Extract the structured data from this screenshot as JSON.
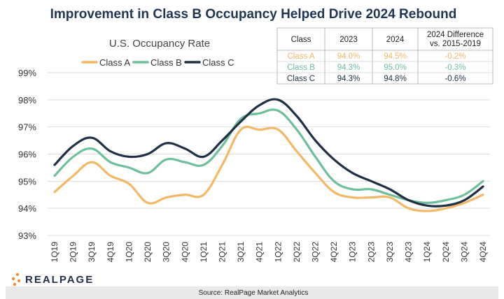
{
  "chart_data": {
    "type": "line",
    "title": "Improvement in Class B Occupancy Helped Drive 2024 Rebound",
    "subtitle": "U.S. Occupancy Rate",
    "categories": [
      "1Q19",
      "2Q19",
      "3Q19",
      "4Q19",
      "1Q20",
      "2Q20",
      "3Q20",
      "4Q20",
      "1Q21",
      "2Q21",
      "3Q21",
      "4Q21",
      "1Q22",
      "2Q22",
      "3Q22",
      "4Q22",
      "1Q23",
      "2Q23",
      "3Q23",
      "4Q23",
      "1Q24",
      "2Q24",
      "3Q24",
      "4Q24"
    ],
    "yticks": [
      "93%",
      "94%",
      "95%",
      "96%",
      "97%",
      "98%",
      "99%"
    ],
    "ylim": [
      93,
      99
    ],
    "series": [
      {
        "name": "Class A",
        "color": "#f2b866",
        "values": [
          94.6,
          95.2,
          95.7,
          95.2,
          94.9,
          94.2,
          94.4,
          94.5,
          94.5,
          95.6,
          96.9,
          96.9,
          96.9,
          96.1,
          95.3,
          94.6,
          94.4,
          94.4,
          94.4,
          94.0,
          93.9,
          94.0,
          94.2,
          94.5
        ]
      },
      {
        "name": "Class B",
        "color": "#6cbf9b",
        "values": [
          95.2,
          95.9,
          96.2,
          95.7,
          95.5,
          95.3,
          95.8,
          95.7,
          95.6,
          96.3,
          97.3,
          97.5,
          97.6,
          96.9,
          95.9,
          95.0,
          94.7,
          94.7,
          94.5,
          94.3,
          94.2,
          94.3,
          94.5,
          95.0
        ]
      },
      {
        "name": "Class C",
        "color": "#1f2f45",
        "values": [
          95.6,
          96.3,
          96.6,
          96.1,
          95.9,
          96.0,
          96.4,
          96.2,
          95.9,
          96.5,
          97.2,
          97.8,
          98.0,
          97.4,
          96.5,
          95.8,
          95.3,
          95.0,
          94.7,
          94.3,
          94.1,
          94.1,
          94.3,
          94.8
        ]
      }
    ],
    "legend": "top-left"
  },
  "table": {
    "headers": [
      "Class",
      "2023",
      "2024",
      "2024 Difference vs. 2015-2019"
    ],
    "rows": [
      {
        "class": "Class A",
        "y2023": "94.0%",
        "y2024": "94.5%",
        "diff": "-0.2%",
        "color": "#f2b866"
      },
      {
        "class": "Class B",
        "y2023": "94.3%",
        "y2024": "95.0%",
        "diff": "-0.3%",
        "color": "#6cbf9b"
      },
      {
        "class": "Class C",
        "y2023": "94.3%",
        "y2024": "94.8%",
        "diff": "-0.6%",
        "color": "#1f2f45"
      }
    ]
  },
  "brand": "REALPAGE",
  "source": "Source: RealPage Market Analytics"
}
